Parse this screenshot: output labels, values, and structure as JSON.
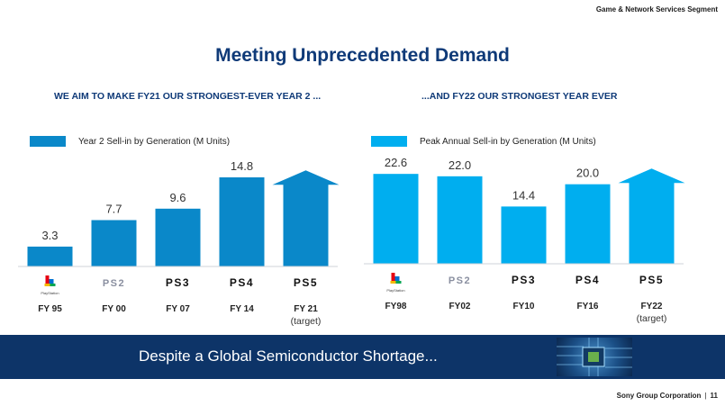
{
  "header": {
    "segment": "Game & Network Services Segment",
    "title": "Meeting Unprecedented Demand"
  },
  "left": {
    "subheading": "WE AIM TO MAKE FY21 OUR STRONGEST-EVER YEAR 2 ...",
    "legend": "Year 2 Sell-in by Generation (M Units)",
    "color": "#0a88c9"
  },
  "right": {
    "subheading": "...AND FY22 OUR STRONGEST YEAR EVER",
    "legend": "Peak Annual Sell-in by Generation  (M Units)",
    "color": "#00aeef"
  },
  "chart_data": [
    {
      "type": "bar",
      "categories": [
        "FY 95",
        "FY 00",
        "FY 07",
        "FY 14",
        "FY 21"
      ],
      "category_notes": [
        "",
        "",
        "",
        "",
        "(target)"
      ],
      "logos": [
        "PlayStation",
        "PS2",
        "PS3",
        "PS4",
        "PS5"
      ],
      "series": [
        {
          "name": "Year 2 Sell-in by Generation (M Units)",
          "values": [
            3.3,
            7.7,
            9.6,
            14.8,
            null
          ]
        }
      ],
      "value_labels": [
        "3.3",
        "7.7",
        "9.6",
        "14.8",
        ""
      ],
      "target_arrow_index": 4,
      "ylim": [
        0,
        16
      ]
    },
    {
      "type": "bar",
      "categories": [
        "FY98",
        "FY02",
        "FY10",
        "FY16",
        "FY22"
      ],
      "category_notes": [
        "",
        "",
        "",
        "",
        "(target)"
      ],
      "logos": [
        "PlayStation",
        "PS2",
        "PS3",
        "PS4",
        "PS5"
      ],
      "series": [
        {
          "name": "Peak Annual Sell-in by Generation  (M Units)",
          "values": [
            22.6,
            22.0,
            14.4,
            20.0,
            null
          ]
        }
      ],
      "value_labels": [
        "22.6",
        "22.0",
        "14.4",
        "20.0",
        ""
      ],
      "target_arrow_index": 4,
      "ylim": [
        0,
        24
      ]
    }
  ],
  "banner": {
    "text": "Despite a Global Semiconductor Shortage..."
  },
  "footer": {
    "company": "Sony Group Corporation",
    "separator": "|",
    "page": "11"
  }
}
